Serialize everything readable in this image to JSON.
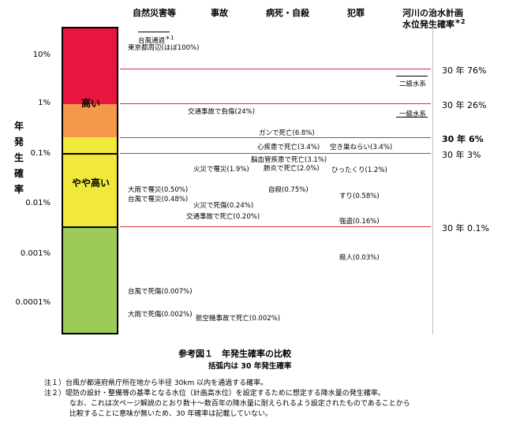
{
  "headers": {
    "natural": "自然災害等",
    "accident": "事故",
    "disease": "病死・自殺",
    "crime": "犯罪",
    "river": "河川の治水計画",
    "river2": "水位発生確率",
    "river2_mark": "＊2"
  },
  "y_axis_label": "年発生確率",
  "ticks": [
    "10%",
    "1%",
    "0.1%",
    "0.01%",
    "0.001%",
    "0.0001%"
  ],
  "bands": {
    "high": "高い",
    "mid": "やや高い",
    "colors": {
      "red": "#e8153f",
      "orange": "#f4984a",
      "yellow": "#f0e83a",
      "green": "#9dcb5a"
    }
  },
  "labels": {
    "typhoon": "台風通過",
    "typhoon_mark": "＊1",
    "tokyo": "東京都周辺(ほぼ100%)",
    "traffic_injury": "交通事故で負傷(24%)",
    "cancer": "ガンで死亡(6.8%)",
    "heart": "心疾患で死亡(3.4%)",
    "burglary": "空き巣ねらい(3.4%)",
    "brain": "脳血管疾患で死亡(3.1%)",
    "fire_injury": "火災で罹災(1.9%)",
    "pneumonia": "肺炎で死亡(2.0%)",
    "snatch": "ひったくり(1.2%)",
    "rain_disaster": "大雨で罹災(0.50%)",
    "typhoon_disaster": "台風で罹災(0.48%)",
    "suicide": "自殺(0.75%)",
    "pickpocket": "すり(0.58%)",
    "fire_death": "火災で死傷(0.24%)",
    "traffic_death": "交通事故で死亡(0.20%)",
    "robbery": "強盗(0.16%)",
    "murder": "殺人(0.03%)",
    "typhoon_death": "台風で死傷(0.007%)",
    "rain_death": "大雨で死傷(0.002%)",
    "aircraft": "航空機事故で死亡(0.002%)",
    "class2": "二級水系",
    "class1": "一級水系"
  },
  "right_values": [
    "30 年 76%",
    "30 年 26%",
    "30 年  6%",
    "30 年 3%",
    "30 年 0.1%"
  ],
  "caption": "参考図１　年発生確率の比較",
  "subcaption": "括弧内は 30 年発生確率",
  "notes": [
    "注１）台風が都道府県庁所在地から半径 30km 以内を通過する確率。",
    "注２）堤防の設計・整備等の基準となる水位（計画高水位）を設定するために想定する降水量の発生確率。",
    "なお、これは次ページ解説のとおり数十〜数百年の降水量に耐えられるよう設定されたものであることから",
    "比較することに意味が無いため、30 年確率は記載していない。"
  ]
}
